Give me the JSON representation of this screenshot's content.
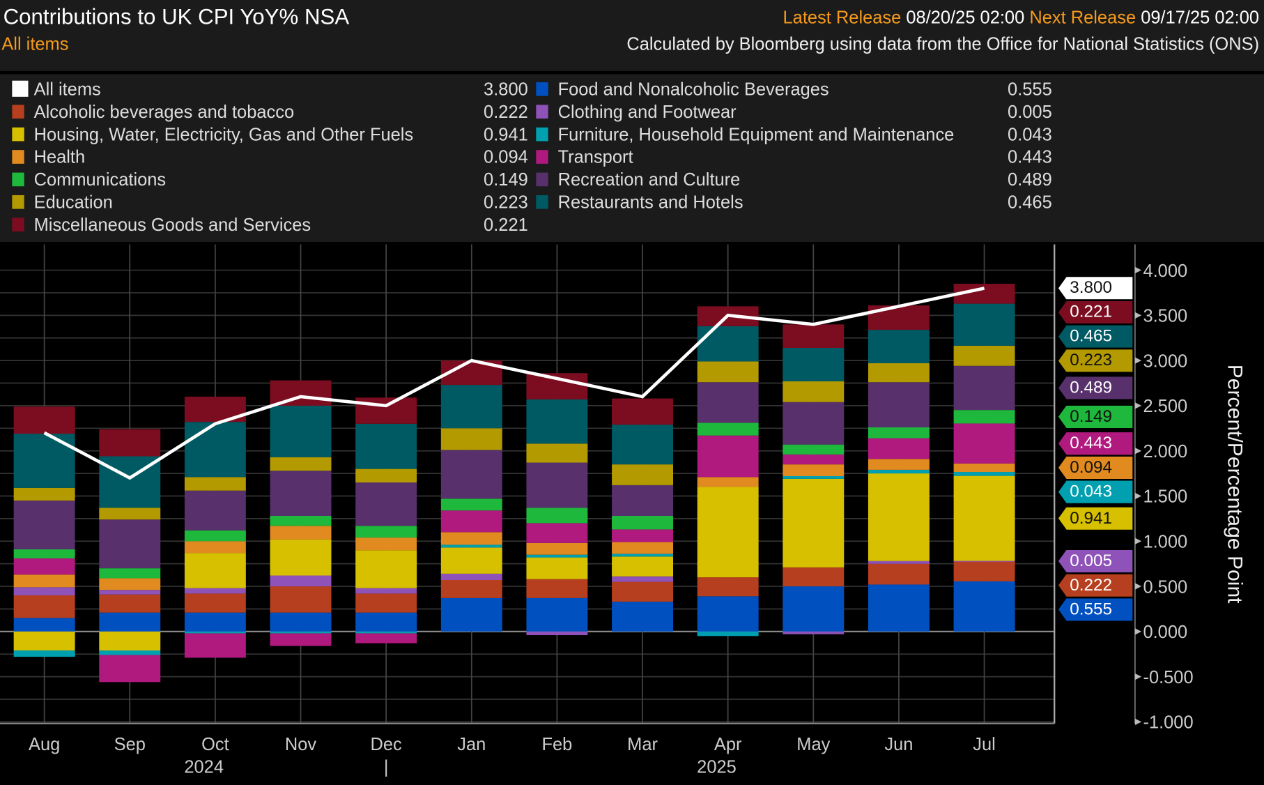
{
  "header": {
    "title": "Contributions to UK CPI YoY% NSA",
    "subtitle": "All items",
    "latest_label": "Latest Release",
    "latest_value": "08/20/25 02:00",
    "next_label": "Next Release",
    "next_value": "09/17/25 02:00",
    "source": "Calculated by Bloomberg using data from the Office for National Statistics (ONS)"
  },
  "legend_columns": [
    [
      0,
      2,
      4,
      6,
      8,
      10,
      12
    ],
    [
      1,
      3,
      5,
      7,
      9,
      11
    ]
  ],
  "chart_data": {
    "type": "bar",
    "stacked": true,
    "title": "Contributions to UK CPI YoY% NSA",
    "ylabel": "Percent/Percentage Point",
    "xlabel": "",
    "categories": [
      "Aug",
      "Sep",
      "Oct",
      "Nov",
      "Dec",
      "Jan",
      "Feb",
      "Mar",
      "Apr",
      "May",
      "Jun",
      "Jul"
    ],
    "year_labels": [
      {
        "label": "2024",
        "index": 2
      },
      {
        "label": "2025",
        "index": 8
      }
    ],
    "year_divider": "|",
    "ylim": [
      -1,
      4
    ],
    "yticks": [
      "4.000",
      "3.500",
      "3.000",
      "2.500",
      "2.000",
      "1.500",
      "1.000",
      "0.500",
      "0.000",
      "-0.500",
      "-1.000"
    ],
    "grid": true,
    "series": [
      {
        "name": "All items",
        "type": "line",
        "color": "#ffffff",
        "last": "3.800",
        "values": [
          2.2,
          1.7,
          2.3,
          2.6,
          2.5,
          3.0,
          2.8,
          2.6,
          3.5,
          3.4,
          3.6,
          3.8
        ]
      },
      {
        "name": "Food and Nonalcoholic Beverages",
        "color": "#0050c0",
        "last": "0.555",
        "values": [
          0.15,
          0.21,
          0.21,
          0.21,
          0.21,
          0.37,
          0.37,
          0.33,
          0.39,
          0.5,
          0.52,
          0.555
        ]
      },
      {
        "name": "Alcoholic beverages and tobacco",
        "color": "#b53f1e",
        "last": "0.222",
        "values": [
          0.25,
          0.2,
          0.21,
          0.29,
          0.21,
          0.2,
          0.21,
          0.22,
          0.21,
          0.21,
          0.23,
          0.222
        ]
      },
      {
        "name": "Clothing and Footwear",
        "color": "#8e52b8",
        "last": "0.005",
        "values": [
          0.09,
          0.05,
          0.06,
          0.12,
          0.06,
          0.07,
          -0.04,
          0.06,
          0.0,
          -0.03,
          0.03,
          0.005
        ]
      },
      {
        "name": "Housing, Water, Electricity, Gas and Other Fuels",
        "color": "#d6c000",
        "last": "0.941",
        "values": [
          -0.21,
          -0.21,
          0.39,
          0.4,
          0.42,
          0.29,
          0.24,
          0.22,
          1.0,
          0.98,
          0.97,
          0.941
        ]
      },
      {
        "name": "Furniture, Household Equipment and Maintenance",
        "color": "#00a0b0",
        "last": "0.043",
        "values": [
          -0.07,
          -0.05,
          -0.02,
          -0.02,
          -0.02,
          0.03,
          0.03,
          0.03,
          -0.05,
          0.03,
          0.04,
          0.043
        ]
      },
      {
        "name": "Health",
        "color": "#e08a20",
        "last": "0.094",
        "values": [
          0.14,
          0.13,
          0.13,
          0.15,
          0.14,
          0.14,
          0.13,
          0.13,
          0.11,
          0.13,
          0.12,
          0.094
        ]
      },
      {
        "name": "Transport",
        "color": "#b0197e",
        "last": "0.443",
        "values": [
          0.18,
          -0.3,
          -0.27,
          -0.14,
          -0.11,
          0.24,
          0.22,
          0.14,
          0.46,
          0.11,
          0.23,
          0.443
        ]
      },
      {
        "name": "Communications",
        "color": "#1eb93c",
        "last": "0.149",
        "values": [
          0.1,
          0.11,
          0.12,
          0.11,
          0.13,
          0.13,
          0.17,
          0.15,
          0.14,
          0.11,
          0.12,
          0.149
        ]
      },
      {
        "name": "Recreation and Culture",
        "color": "#57306c",
        "last": "0.489",
        "values": [
          0.54,
          0.54,
          0.44,
          0.5,
          0.48,
          0.54,
          0.5,
          0.34,
          0.45,
          0.47,
          0.5,
          0.489
        ]
      },
      {
        "name": "Education",
        "color": "#b39a00",
        "last": "0.223",
        "values": [
          0.14,
          0.13,
          0.15,
          0.15,
          0.15,
          0.24,
          0.21,
          0.23,
          0.23,
          0.23,
          0.21,
          0.223
        ]
      },
      {
        "name": "Restaurants and Hotels",
        "color": "#005a64",
        "last": "0.465",
        "values": [
          0.6,
          0.57,
          0.61,
          0.57,
          0.5,
          0.48,
          0.49,
          0.44,
          0.39,
          0.37,
          0.37,
          0.465
        ]
      },
      {
        "name": "Miscellaneous Goods and Services",
        "color": "#7c0d20",
        "last": "0.221",
        "values": [
          0.3,
          0.3,
          0.28,
          0.28,
          0.29,
          0.27,
          0.29,
          0.29,
          0.22,
          0.26,
          0.27,
          0.221
        ]
      }
    ]
  }
}
